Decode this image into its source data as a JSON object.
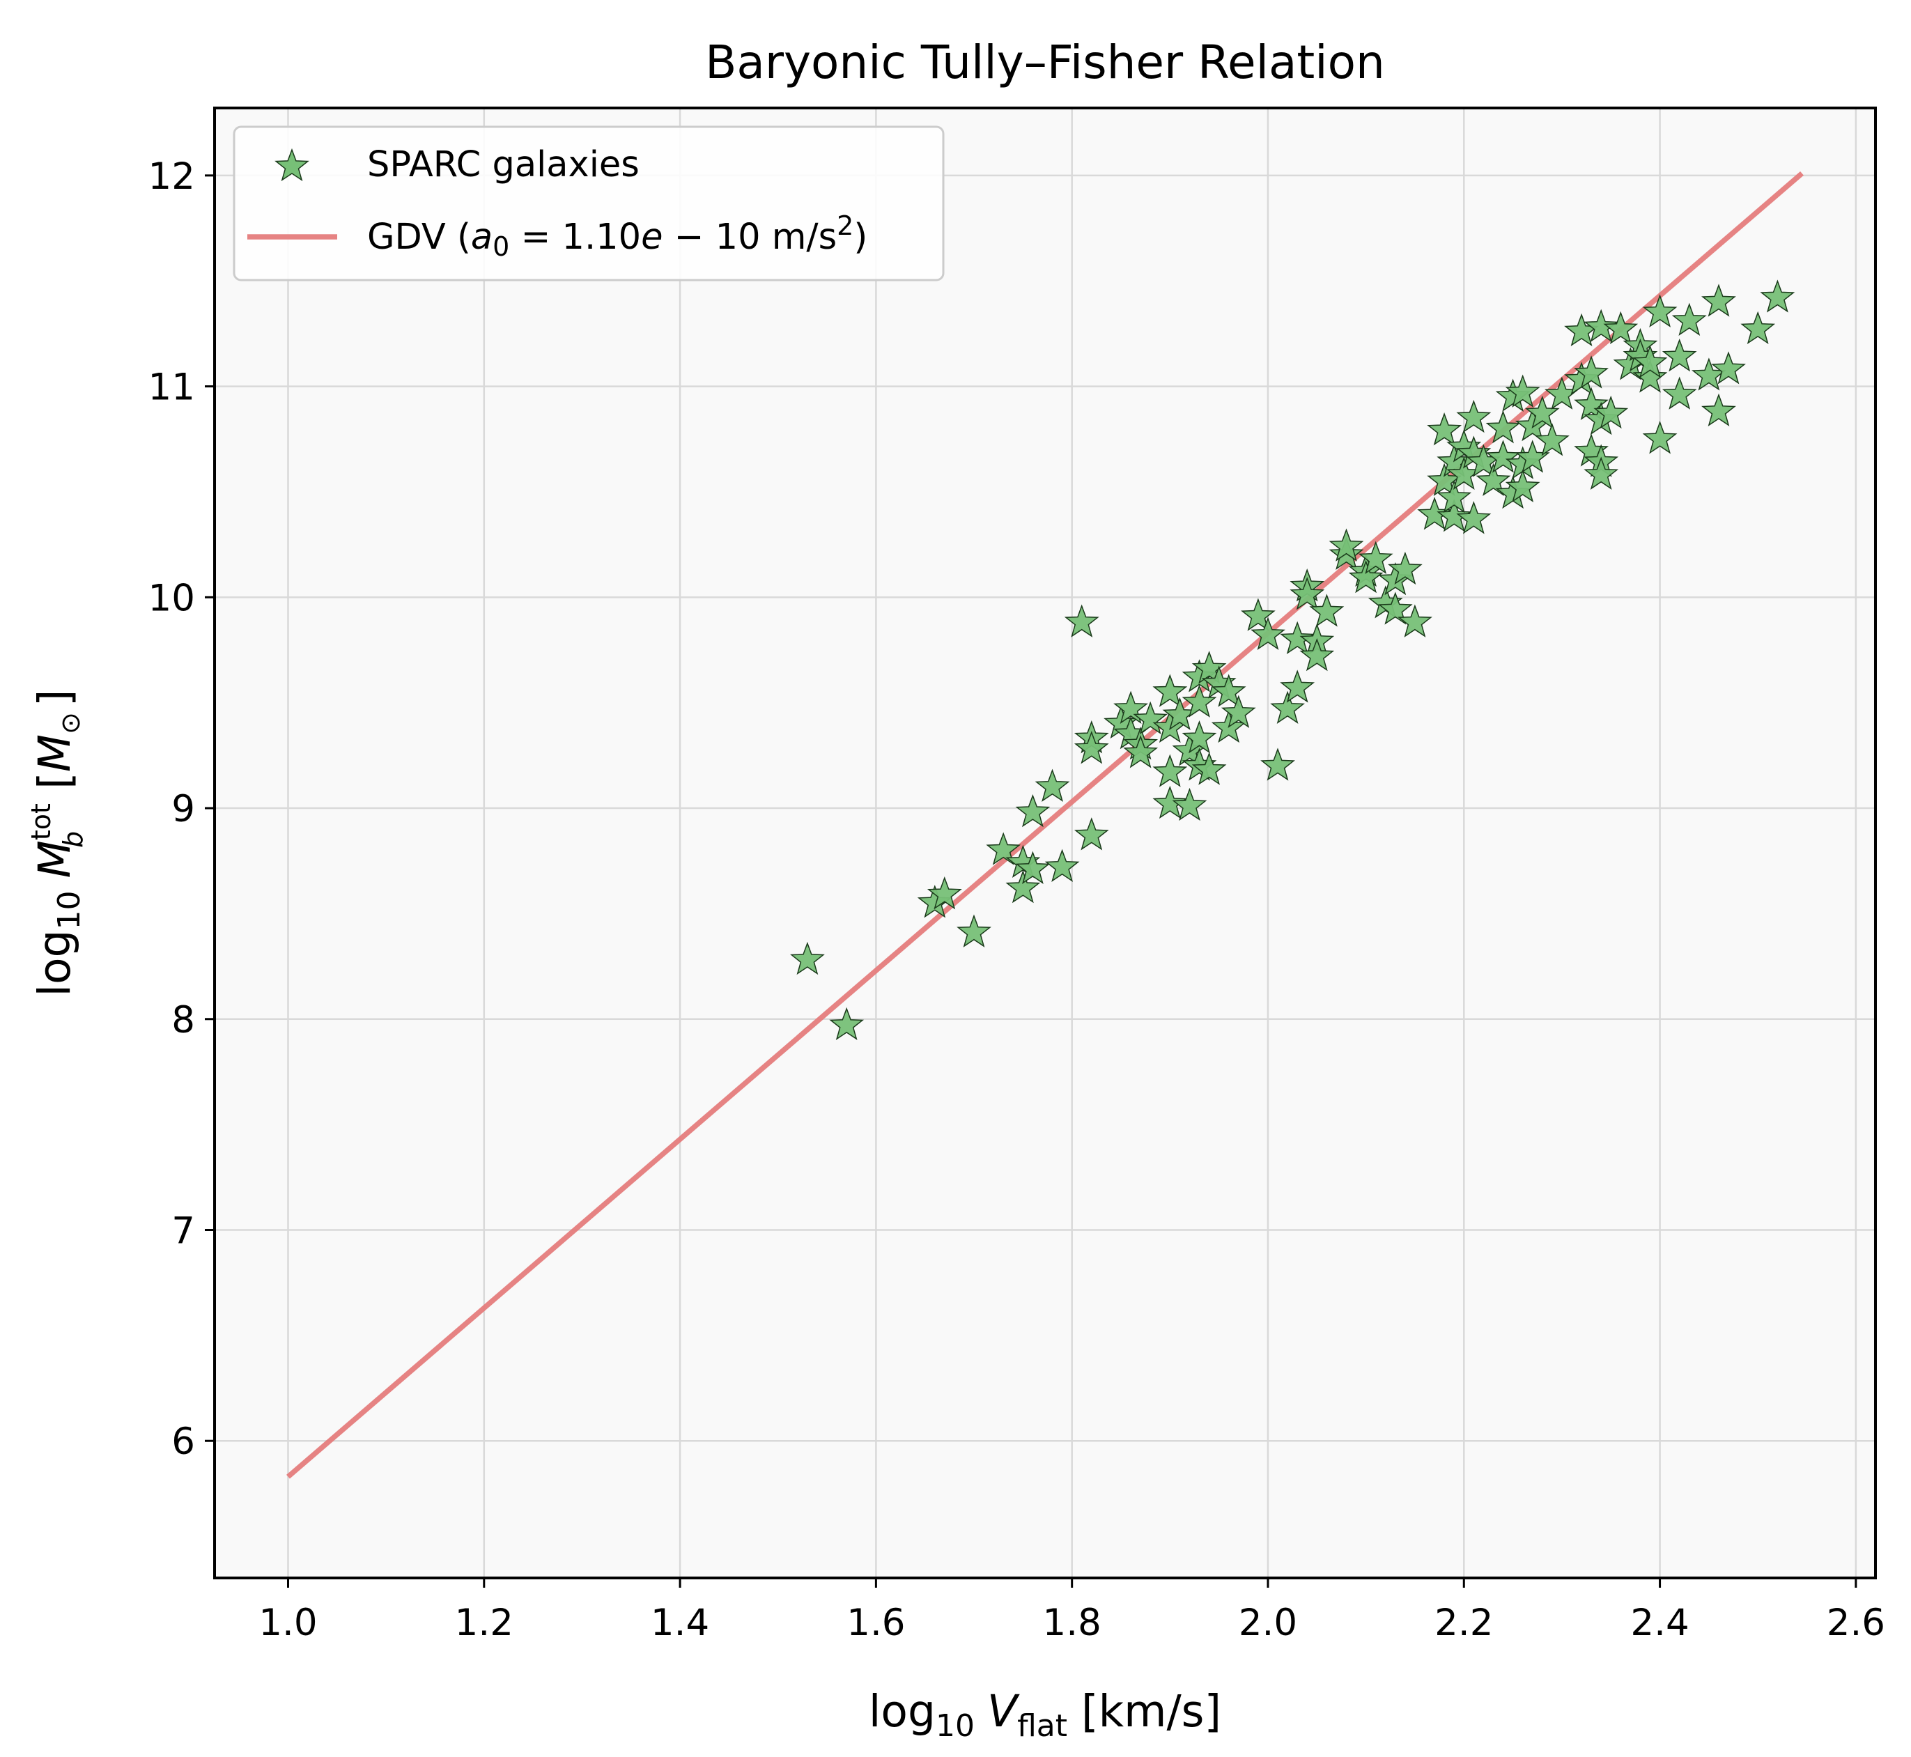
{
  "colors": {
    "figure_bg": "#ffffff",
    "axes_bg": "#f9f9f9",
    "grid": "#d9d9d9",
    "points": "#77c077",
    "point_edge": "#1a3a1a",
    "line": "#e57c7c",
    "legend_border": "#cccccc"
  },
  "icons": {
    "marker": "star-icon"
  },
  "chart_data": {
    "type": "scatter",
    "title": "Baryonic Tully–Fisher Relation",
    "xlabel": {
      "pre": "log",
      "sub": "10",
      "var": "V",
      "var_sub": "flat",
      "post": " [km/s]"
    },
    "ylabel": {
      "pre": "log",
      "sub": "10",
      "var": "M",
      "var_sub": "b",
      "var_sup": "tot",
      "post_open": " [",
      "unit": "M",
      "unit_sub": "⊙",
      "post_close": "]"
    },
    "xlim": [
      0.925,
      2.62
    ],
    "ylim": [
      5.35,
      12.32
    ],
    "xticks": [
      "1.0",
      "1.2",
      "1.4",
      "1.6",
      "1.8",
      "2.0",
      "2.2",
      "2.4",
      "2.6"
    ],
    "yticks": [
      "6",
      "7",
      "8",
      "9",
      "10",
      "11",
      "12"
    ],
    "grid": true,
    "legend_position": "upper-left",
    "series": [
      {
        "name": "SPARC galaxies",
        "kind": "scatter",
        "marker": "star",
        "points": [
          [
            1.53,
            8.28
          ],
          [
            1.57,
            7.97
          ],
          [
            1.66,
            8.55
          ],
          [
            1.67,
            8.59
          ],
          [
            1.7,
            8.41
          ],
          [
            1.73,
            8.8
          ],
          [
            1.75,
            8.74
          ],
          [
            1.75,
            8.62
          ],
          [
            1.76,
            8.71
          ],
          [
            1.76,
            8.98
          ],
          [
            1.78,
            9.1
          ],
          [
            1.79,
            8.72
          ],
          [
            1.81,
            9.88
          ],
          [
            1.82,
            9.33
          ],
          [
            1.82,
            9.28
          ],
          [
            1.82,
            8.87
          ],
          [
            1.85,
            9.4
          ],
          [
            1.86,
            9.47
          ],
          [
            1.86,
            9.35
          ],
          [
            1.87,
            9.3
          ],
          [
            1.87,
            9.26
          ],
          [
            1.88,
            9.42
          ],
          [
            1.9,
            9.55
          ],
          [
            1.9,
            9.38
          ],
          [
            1.9,
            9.17
          ],
          [
            1.9,
            9.02
          ],
          [
            1.91,
            9.44
          ],
          [
            1.92,
            9.27
          ],
          [
            1.92,
            9.01
          ],
          [
            1.93,
            9.62
          ],
          [
            1.93,
            9.5
          ],
          [
            1.93,
            9.33
          ],
          [
            1.93,
            9.2
          ],
          [
            1.94,
            9.66
          ],
          [
            1.94,
            9.18
          ],
          [
            1.95,
            9.59
          ],
          [
            1.96,
            9.55
          ],
          [
            1.96,
            9.38
          ],
          [
            1.97,
            9.45
          ],
          [
            1.99,
            9.91
          ],
          [
            2.0,
            9.82
          ],
          [
            2.01,
            9.2
          ],
          [
            2.02,
            9.47
          ],
          [
            2.03,
            9.8
          ],
          [
            2.03,
            9.57
          ],
          [
            2.04,
            10.05
          ],
          [
            2.04,
            10.01
          ],
          [
            2.05,
            9.79
          ],
          [
            2.05,
            9.72
          ],
          [
            2.06,
            9.93
          ],
          [
            2.08,
            10.2
          ],
          [
            2.08,
            10.24
          ],
          [
            2.1,
            10.12
          ],
          [
            2.1,
            10.09
          ],
          [
            2.11,
            10.18
          ],
          [
            2.12,
            9.97
          ],
          [
            2.13,
            9.94
          ],
          [
            2.13,
            10.08
          ],
          [
            2.14,
            10.13
          ],
          [
            2.15,
            9.88
          ],
          [
            2.17,
            10.39
          ],
          [
            2.18,
            10.55
          ],
          [
            2.18,
            10.79
          ],
          [
            2.19,
            10.38
          ],
          [
            2.19,
            10.47
          ],
          [
            2.19,
            10.64
          ],
          [
            2.2,
            10.71
          ],
          [
            2.2,
            10.58
          ],
          [
            2.21,
            10.85
          ],
          [
            2.21,
            10.37
          ],
          [
            2.21,
            10.68
          ],
          [
            2.22,
            10.64
          ],
          [
            2.23,
            10.55
          ],
          [
            2.24,
            10.8
          ],
          [
            2.24,
            10.66
          ],
          [
            2.25,
            10.49
          ],
          [
            2.25,
            10.95
          ],
          [
            2.26,
            10.97
          ],
          [
            2.26,
            10.63
          ],
          [
            2.26,
            10.52
          ],
          [
            2.27,
            10.81
          ],
          [
            2.27,
            10.66
          ],
          [
            2.28,
            10.87
          ],
          [
            2.29,
            10.74
          ],
          [
            2.3,
            10.96
          ],
          [
            2.32,
            11.26
          ],
          [
            2.32,
            11.03
          ],
          [
            2.33,
            11.06
          ],
          [
            2.33,
            10.91
          ],
          [
            2.33,
            10.69
          ],
          [
            2.34,
            11.28
          ],
          [
            2.34,
            10.84
          ],
          [
            2.34,
            10.64
          ],
          [
            2.34,
            10.58
          ],
          [
            2.35,
            10.87
          ],
          [
            2.36,
            11.27
          ],
          [
            2.37,
            11.1
          ],
          [
            2.38,
            11.19
          ],
          [
            2.38,
            11.14
          ],
          [
            2.39,
            11.04
          ],
          [
            2.39,
            11.11
          ],
          [
            2.4,
            11.35
          ],
          [
            2.4,
            10.75
          ],
          [
            2.42,
            10.96
          ],
          [
            2.42,
            11.14
          ],
          [
            2.43,
            11.31
          ],
          [
            2.45,
            11.05
          ],
          [
            2.46,
            11.4
          ],
          [
            2.46,
            10.88
          ],
          [
            2.47,
            11.08
          ],
          [
            2.5,
            11.27
          ],
          [
            2.52,
            11.42
          ]
        ]
      },
      {
        "name": "GDV",
        "legend_parts": {
          "prefix": "GDV (",
          "a": "a",
          "a_sub": "0",
          "eq": " = 1.10",
          "e": "e",
          "rest": " − 10 m/s",
          "sup": "2",
          "close": ")"
        },
        "kind": "line",
        "x": [
          1.0,
          2.545
        ],
        "y": [
          5.83,
          12.01
        ]
      }
    ]
  }
}
